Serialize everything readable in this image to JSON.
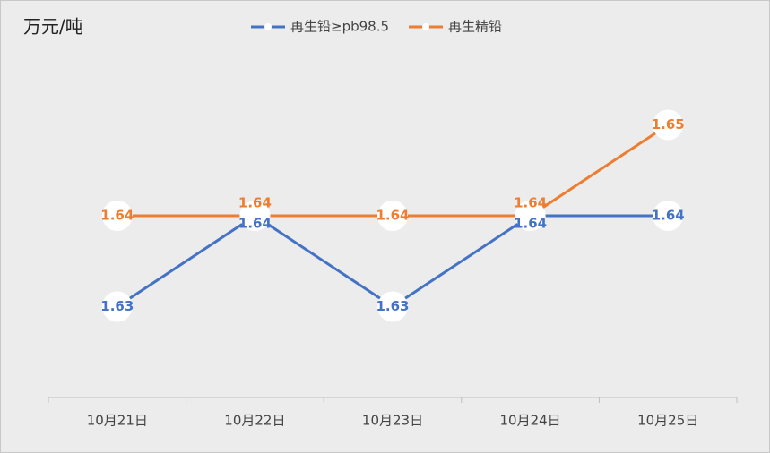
{
  "chart_data": {
    "type": "line",
    "title": "万元/吨",
    "categories": [
      "10月21日",
      "10月22日",
      "10月23日",
      "10月24日",
      "10月25日"
    ],
    "series": [
      {
        "name": "再生铅≥pb98.5",
        "color": "#4472c4",
        "values": [
          1.63,
          1.64,
          1.63,
          1.64,
          1.64
        ]
      },
      {
        "name": "再生精铅",
        "color": "#ed7d31",
        "values": [
          1.64,
          1.64,
          1.64,
          1.64,
          1.65
        ]
      }
    ],
    "ylim": [
      1.62,
      1.66
    ]
  }
}
